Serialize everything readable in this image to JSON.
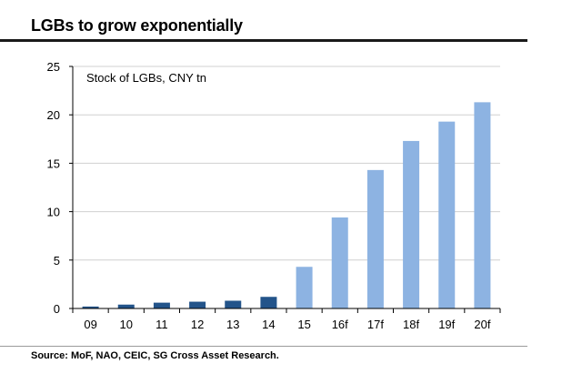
{
  "header": {
    "title": "LGBs to grow exponentially"
  },
  "footer": {
    "source": "Source:  MoF, NAO, CEIC, SG Cross Asset Research."
  },
  "colors": {
    "actual": "#23548a",
    "forecast": "#8db3e2",
    "grid": "#d0d0d0",
    "axis": "#000000"
  },
  "chart_data": {
    "type": "bar",
    "title": "LGBs to grow exponentially",
    "annotation": "Stock of LGBs, CNY tn",
    "xlabel": "",
    "ylabel": "",
    "ylim": [
      0,
      25
    ],
    "yticks": [
      0,
      5,
      10,
      15,
      20,
      25
    ],
    "grid": true,
    "categories": [
      "09",
      "10",
      "11",
      "12",
      "13",
      "14",
      "15",
      "16f",
      "17f",
      "18f",
      "19f",
      "20f"
    ],
    "values": [
      0.2,
      0.4,
      0.6,
      0.7,
      0.8,
      1.2,
      4.3,
      9.4,
      14.3,
      17.3,
      19.3,
      21.3
    ],
    "forecast": [
      false,
      false,
      false,
      false,
      false,
      false,
      true,
      true,
      true,
      true,
      true,
      true
    ]
  }
}
